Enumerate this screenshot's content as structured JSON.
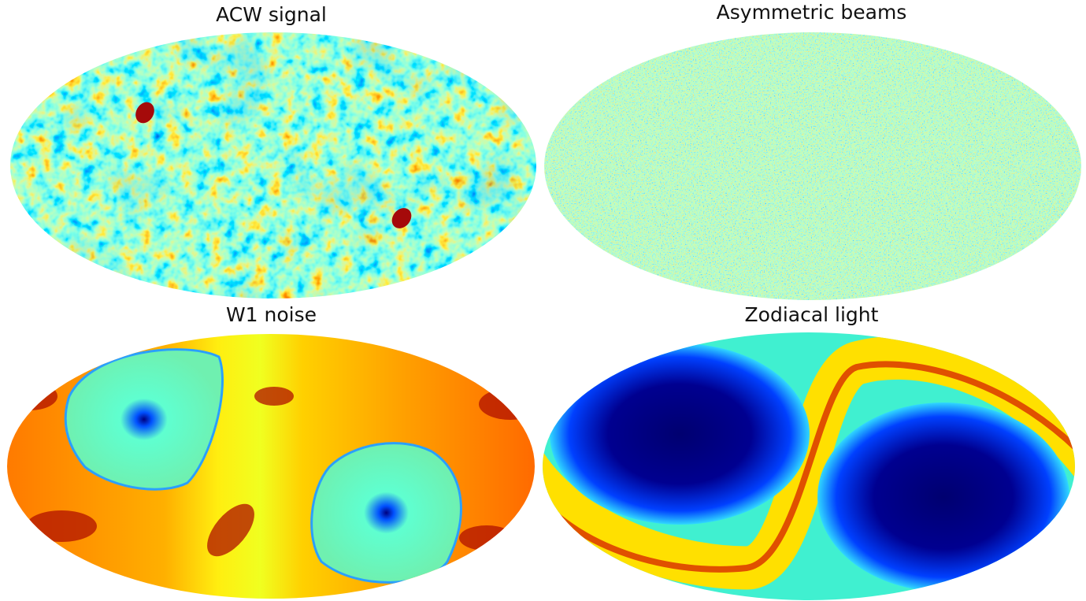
{
  "panels": [
    {
      "title": "ACW signal",
      "colormap": "jet",
      "description_key": "acw"
    },
    {
      "title": "Asymmetric beams",
      "colormap": "jet",
      "description_key": "beams"
    },
    {
      "title": "W1 noise",
      "colormap": "jet",
      "description_key": "noise"
    },
    {
      "title": "Zodiacal light",
      "colormap": "jet",
      "description_key": "zodi"
    }
  ],
  "colors": {
    "jet_dark_blue": "#00007f",
    "jet_blue": "#0050ff",
    "jet_cyan": "#3fffff",
    "jet_green": "#7fff7f",
    "jet_yellow": "#ffff00",
    "jet_orange": "#ff8000",
    "jet_red": "#d00000",
    "jet_dark_red": "#7f0000",
    "background": "#ffffff"
  }
}
